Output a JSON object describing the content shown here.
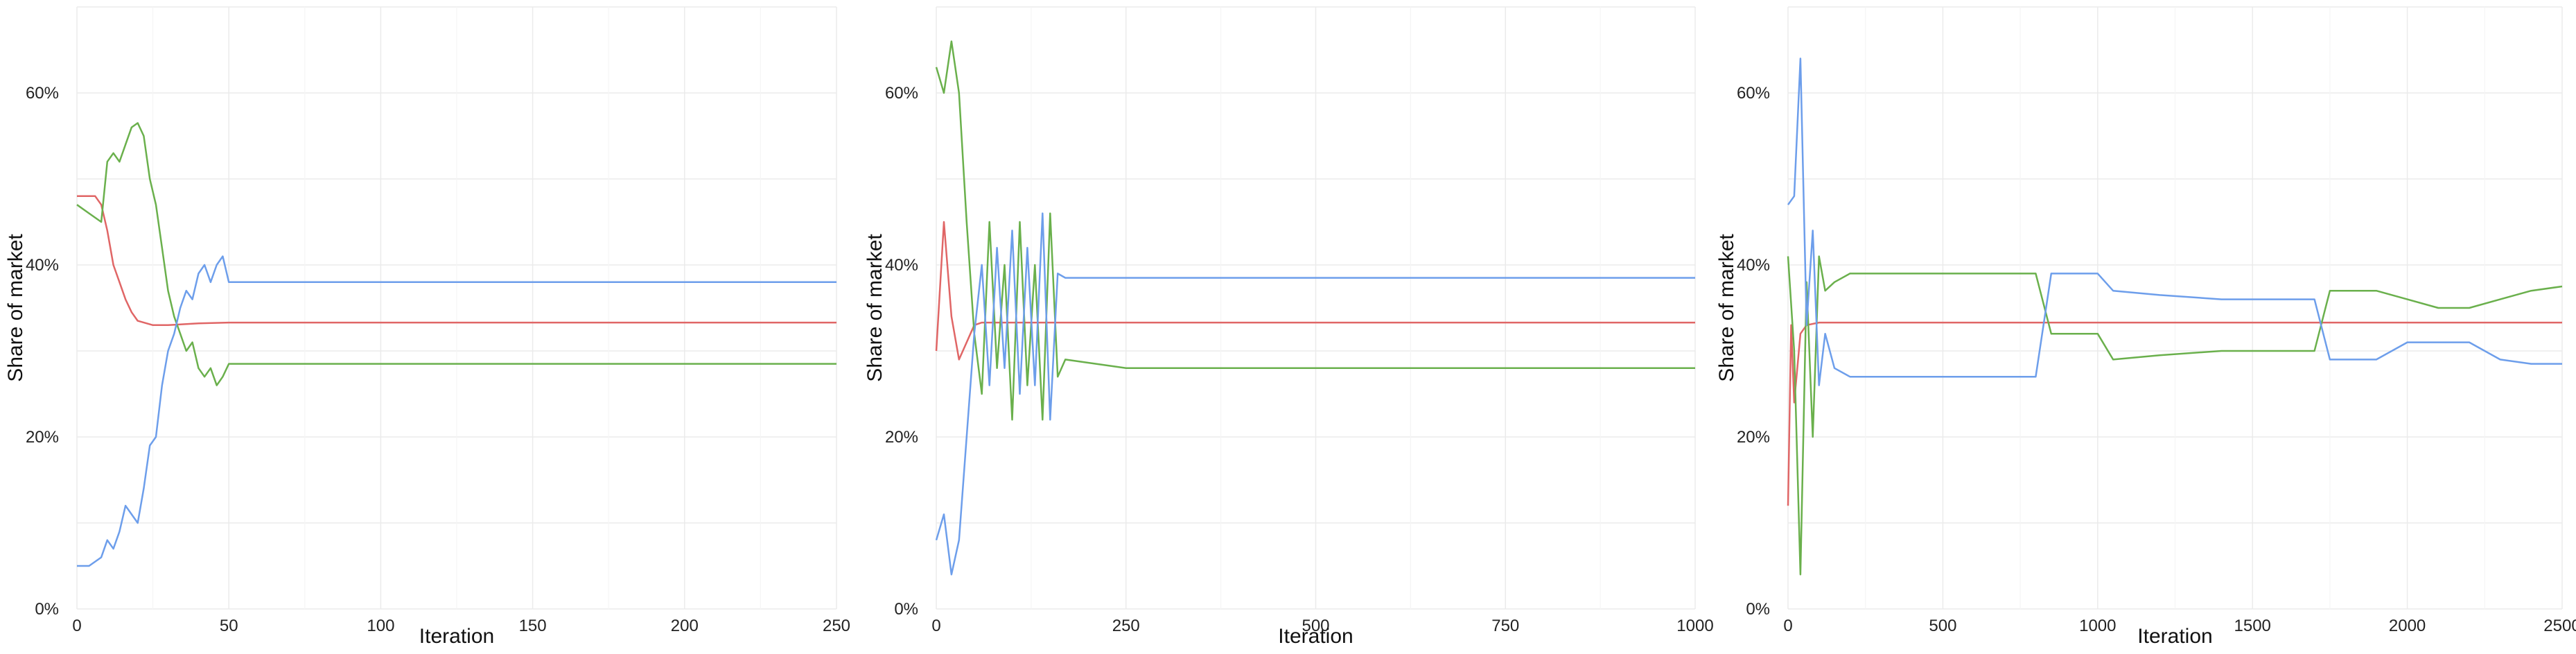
{
  "chart_data": [
    {
      "type": "line",
      "xlabel": "Iteration",
      "ylabel": "Share of market",
      "xlim": [
        0,
        250
      ],
      "ylim": [
        0,
        0.7
      ],
      "x_ticks": [
        0,
        50,
        100,
        150,
        200,
        250
      ],
      "x_tick_labels": [
        "0",
        "50",
        "100",
        "150",
        "200",
        "250"
      ],
      "y_ticks": [
        0,
        0.2,
        0.4,
        0.6
      ],
      "y_tick_labels": [
        "0%",
        "20%",
        "40%",
        "60%"
      ],
      "grid": true,
      "series": [
        {
          "color": "#E06666",
          "x": [
            0,
            3,
            6,
            8,
            10,
            12,
            14,
            16,
            18,
            20,
            25,
            30,
            40,
            50,
            100,
            250
          ],
          "y": [
            0.48,
            0.48,
            0.48,
            0.47,
            0.44,
            0.4,
            0.38,
            0.36,
            0.345,
            0.335,
            0.33,
            0.33,
            0.332,
            0.333,
            0.333,
            0.333
          ]
        },
        {
          "color": "#6AB04C",
          "x": [
            0,
            4,
            8,
            10,
            12,
            14,
            16,
            18,
            20,
            22,
            24,
            26,
            28,
            30,
            32,
            34,
            36,
            38,
            40,
            42,
            44,
            46,
            48,
            50,
            250
          ],
          "y": [
            0.47,
            0.46,
            0.45,
            0.52,
            0.53,
            0.52,
            0.54,
            0.56,
            0.565,
            0.55,
            0.5,
            0.47,
            0.42,
            0.37,
            0.34,
            0.32,
            0.3,
            0.31,
            0.28,
            0.27,
            0.28,
            0.26,
            0.27,
            0.285,
            0.285
          ]
        },
        {
          "color": "#6D9EEB",
          "x": [
            0,
            4,
            8,
            10,
            12,
            14,
            16,
            18,
            20,
            22,
            24,
            26,
            28,
            30,
            32,
            34,
            36,
            38,
            40,
            42,
            44,
            46,
            48,
            50,
            250
          ],
          "y": [
            0.05,
            0.05,
            0.06,
            0.08,
            0.07,
            0.09,
            0.12,
            0.11,
            0.1,
            0.14,
            0.19,
            0.2,
            0.26,
            0.3,
            0.32,
            0.35,
            0.37,
            0.36,
            0.39,
            0.4,
            0.38,
            0.4,
            0.41,
            0.38,
            0.38
          ]
        }
      ]
    },
    {
      "type": "line",
      "xlabel": "Iteration",
      "ylabel": "Share of market",
      "xlim": [
        0,
        1000
      ],
      "ylim": [
        0,
        0.7
      ],
      "x_ticks": [
        0,
        250,
        500,
        750,
        1000
      ],
      "x_tick_labels": [
        "0",
        "250",
        "500",
        "750",
        "1000"
      ],
      "y_ticks": [
        0,
        0.2,
        0.4,
        0.6
      ],
      "y_tick_labels": [
        "0%",
        "20%",
        "40%",
        "60%"
      ],
      "grid": true,
      "series": [
        {
          "color": "#E06666",
          "x": [
            0,
            10,
            20,
            30,
            40,
            50,
            60,
            80,
            100,
            1000
          ],
          "y": [
            0.3,
            0.45,
            0.34,
            0.29,
            0.31,
            0.33,
            0.333,
            0.333,
            0.333,
            0.333
          ]
        },
        {
          "color": "#6AB04C",
          "x": [
            0,
            10,
            20,
            30,
            40,
            50,
            60,
            70,
            80,
            90,
            100,
            110,
            120,
            130,
            140,
            150,
            160,
            170,
            250,
            251,
            1000
          ],
          "y": [
            0.63,
            0.6,
            0.66,
            0.6,
            0.45,
            0.32,
            0.25,
            0.45,
            0.28,
            0.4,
            0.22,
            0.45,
            0.26,
            0.4,
            0.22,
            0.46,
            0.27,
            0.29,
            0.28,
            0.28,
            0.28
          ]
        },
        {
          "color": "#6D9EEB",
          "x": [
            0,
            10,
            20,
            30,
            40,
            50,
            60,
            70,
            80,
            90,
            100,
            110,
            120,
            130,
            140,
            150,
            160,
            170,
            250,
            251,
            1000
          ],
          "y": [
            0.08,
            0.11,
            0.04,
            0.08,
            0.2,
            0.32,
            0.4,
            0.26,
            0.42,
            0.28,
            0.44,
            0.25,
            0.42,
            0.26,
            0.46,
            0.22,
            0.39,
            0.385,
            0.385,
            0.385,
            0.385
          ]
        }
      ]
    },
    {
      "type": "line",
      "xlabel": "Iteration",
      "ylabel": "Share of market",
      "xlim": [
        0,
        2500
      ],
      "ylim": [
        0,
        0.7
      ],
      "x_ticks": [
        0,
        500,
        1000,
        1500,
        2000,
        2500
      ],
      "x_tick_labels": [
        "0",
        "500",
        "1000",
        "1500",
        "2000",
        "2500"
      ],
      "y_ticks": [
        0,
        0.2,
        0.4,
        0.6
      ],
      "y_tick_labels": [
        "0%",
        "20%",
        "40%",
        "60%"
      ],
      "grid": true,
      "series": [
        {
          "color": "#E06666",
          "x": [
            0,
            10,
            20,
            40,
            60,
            100,
            2500
          ],
          "y": [
            0.12,
            0.33,
            0.24,
            0.32,
            0.33,
            0.333,
            0.333
          ]
        },
        {
          "color": "#6AB04C",
          "x": [
            0,
            20,
            40,
            60,
            80,
            100,
            120,
            150,
            200,
            800,
            850,
            1000,
            1050,
            1200,
            1400,
            1700,
            1750,
            1900,
            2000,
            2100,
            2200,
            2300,
            2400,
            2500
          ],
          "y": [
            0.41,
            0.3,
            0.04,
            0.38,
            0.2,
            0.41,
            0.37,
            0.38,
            0.39,
            0.39,
            0.32,
            0.32,
            0.29,
            0.295,
            0.3,
            0.3,
            0.37,
            0.37,
            0.36,
            0.35,
            0.35,
            0.36,
            0.37,
            0.375
          ]
        },
        {
          "color": "#6D9EEB",
          "x": [
            0,
            20,
            40,
            60,
            80,
            100,
            120,
            150,
            200,
            800,
            850,
            1000,
            1050,
            1200,
            1400,
            1700,
            1750,
            1900,
            2000,
            2100,
            2200,
            2300,
            2400,
            2500
          ],
          "y": [
            0.47,
            0.48,
            0.64,
            0.33,
            0.44,
            0.26,
            0.32,
            0.28,
            0.27,
            0.27,
            0.39,
            0.39,
            0.37,
            0.365,
            0.36,
            0.36,
            0.29,
            0.29,
            0.31,
            0.31,
            0.31,
            0.29,
            0.285,
            0.285
          ]
        }
      ]
    }
  ]
}
